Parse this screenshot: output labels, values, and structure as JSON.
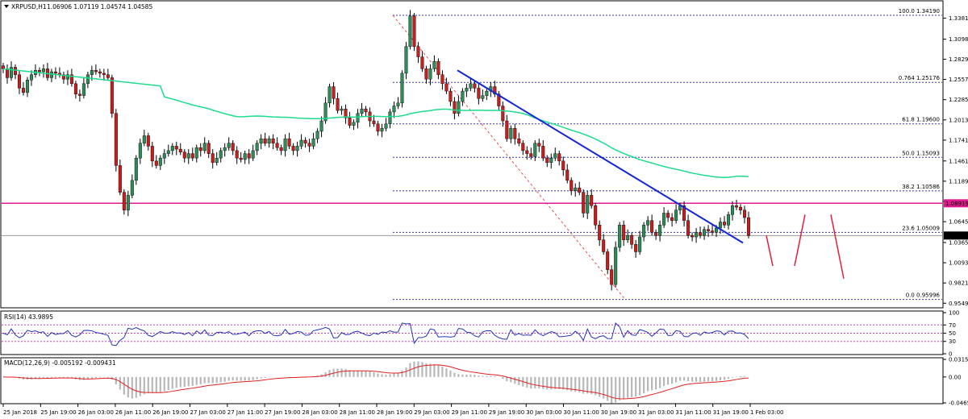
{
  "header": {
    "symbol": "XRPUSD,H1",
    "ohlc": "1.06906 1.07119 1.04574 1.04585"
  },
  "colors": {
    "bull": "#2e8b57",
    "bear": "#c41e1e",
    "ma": "#1ddc8e",
    "trendline": "#1426d4",
    "hline": "#e0198f",
    "fib": "#3535c8",
    "fib_diag": "#e05050",
    "forecast": "#e0203a",
    "rsi": "#2633b8",
    "rsi_levels": "#c040c0",
    "macd_signal": "#e02020",
    "macd_hist": "#b8b8b8",
    "grid": "#000000"
  },
  "chart_data": [
    {
      "type": "candlestick",
      "panel": "price",
      "title": "XRPUSD,H1",
      "ylim": [
        0.9498,
        1.3603
      ],
      "y_ticks": [
        "1.33810",
        "1.30980",
        "1.28290",
        "1.25570",
        "1.22850",
        "1.20130",
        "1.17410",
        "1.14610",
        "1.11890",
        "1.09170",
        "1.06450",
        "1.03650",
        "1.00930",
        "0.98210",
        "0.95490"
      ],
      "x_ticks": [
        "25 Jan 2018",
        "25 Jan 19:00",
        "26 Jan 03:00",
        "26 Jan 11:00",
        "26 Jan 19:00",
        "27 Jan 03:00",
        "27 Jan 11:00",
        "27 Jan 19:00",
        "28 Jan 03:00",
        "28 Jan 11:00",
        "28 Jan 19:00",
        "29 Jan 03:00",
        "29 Jan 11:00",
        "29 Jan 19:00",
        "30 Jan 03:00",
        "30 Jan 11:00",
        "30 Jan 19:00",
        "31 Jan 03:00",
        "31 Jan 11:00",
        "31 Jan 19:00",
        "1 Feb 03:00"
      ],
      "candle_closes": [
        1.27,
        1.258,
        1.272,
        1.262,
        1.244,
        1.238,
        1.255,
        1.262,
        1.268,
        1.266,
        1.27,
        1.258,
        1.266,
        1.264,
        1.262,
        1.256,
        1.262,
        1.25,
        1.236,
        1.234,
        1.25,
        1.262,
        1.268,
        1.266,
        1.264,
        1.262,
        1.258,
        1.21,
        1.14,
        1.104,
        1.08,
        1.1,
        1.12,
        1.15,
        1.17,
        1.18,
        1.166,
        1.146,
        1.14,
        1.15,
        1.156,
        1.16,
        1.166,
        1.162,
        1.158,
        1.15,
        1.156,
        1.15,
        1.164,
        1.16,
        1.17,
        1.156,
        1.144,
        1.15,
        1.16,
        1.164,
        1.17,
        1.16,
        1.15,
        1.148,
        1.156,
        1.15,
        1.16,
        1.17,
        1.176,
        1.17,
        1.176,
        1.17,
        1.164,
        1.16,
        1.176,
        1.166,
        1.16,
        1.166,
        1.174,
        1.17,
        1.166,
        1.176,
        1.186,
        1.2,
        1.224,
        1.246,
        1.23,
        1.214,
        1.216,
        1.204,
        1.194,
        1.198,
        1.21,
        1.216,
        1.212,
        1.2,
        1.196,
        1.186,
        1.19,
        1.196,
        1.212,
        1.22,
        1.224,
        1.264,
        1.3,
        1.341,
        1.3,
        1.286,
        1.27,
        1.256,
        1.27,
        1.28,
        1.262,
        1.25,
        1.24,
        1.226,
        1.21,
        1.226,
        1.24,
        1.244,
        1.25,
        1.244,
        1.23,
        1.234,
        1.24,
        1.246,
        1.236,
        1.22,
        1.2,
        1.176,
        1.19,
        1.176,
        1.17,
        1.16,
        1.156,
        1.152,
        1.17,
        1.166,
        1.15,
        1.144,
        1.15,
        1.156,
        1.146,
        1.134,
        1.12,
        1.106,
        1.11,
        1.104,
        1.076,
        1.1,
        1.086,
        1.06,
        1.04,
        1.024,
        1.0,
        0.98,
        1.03,
        1.06,
        1.04,
        1.046,
        1.034,
        1.024,
        1.044,
        1.06,
        1.066,
        1.05,
        1.046,
        1.06,
        1.076,
        1.07,
        1.066,
        1.08,
        1.086,
        1.066,
        1.046,
        1.044,
        1.05,
        1.046,
        1.054,
        1.052,
        1.05,
        1.056,
        1.064,
        1.06,
        1.074,
        1.086,
        1.084,
        1.08,
        1.07,
        1.046
      ],
      "series": [
        {
          "name": "",
          "kind": "moving-average"
        }
      ],
      "fib_levels": [
        {
          "label": "100.0  1.34190",
          "value": 1.3419
        },
        {
          "label": "0.764  1.25176",
          "value": 1.25176
        },
        {
          "label": "61.8  1.19600",
          "value": 1.196
        },
        {
          "label": "50.0  1.15093",
          "value": 1.15093
        },
        {
          "label": "38.2  1.10586",
          "value": 1.10586
        },
        {
          "label": "23.6  1.05009",
          "value": 1.05009
        },
        {
          "label": "0.0  0.95996",
          "value": 0.95996
        }
      ],
      "horizontal_line": {
        "label": "1.08919",
        "value": 1.08919
      },
      "current_price": {
        "label": "1.04585",
        "value": 1.04585
      },
      "trendline": {
        "from": 1.268,
        "to": 1.036
      },
      "forecast_path": [
        1.046,
        1.005,
        1.074,
        0.988
      ]
    },
    {
      "type": "line",
      "panel": "indicator",
      "title": "RSI(14) 43.9895",
      "y_ticks": [
        "100",
        "70",
        "50",
        "30",
        "0"
      ],
      "levels": [
        70,
        50,
        30
      ],
      "ylim": [
        0,
        100
      ]
    },
    {
      "type": "histogram",
      "panel": "indicator",
      "title": "MACD(12,26,9) -0.005192 -0.009431",
      "y_ticks": [
        "0.031529",
        "0.00",
        "-0.046547"
      ],
      "ylim": [
        -0.046547,
        0.031529
      ]
    }
  ]
}
